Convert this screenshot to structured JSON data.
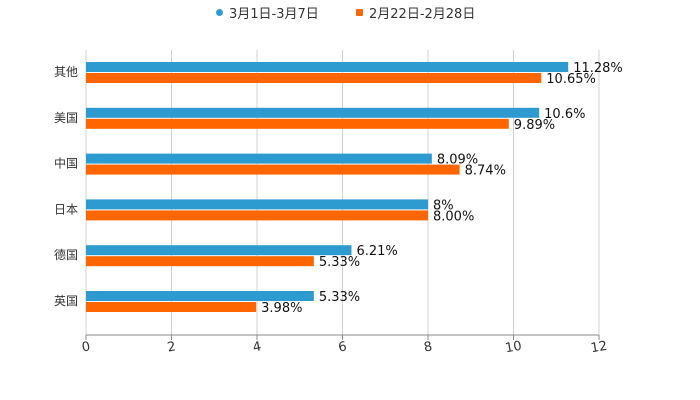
{
  "colors": {
    "series_a": "#2e9bd0",
    "series_b": "#ff6600",
    "grid": "#d0d0d0",
    "axis": "#888888",
    "text": "#333333"
  },
  "legend": [
    {
      "label": "3月1日-3月7日"
    },
    {
      "label": "2月22日-2月28日"
    }
  ],
  "chart_data": {
    "type": "bar",
    "orientation": "horizontal",
    "title": "",
    "xlabel": "",
    "ylabel": "",
    "xlim": [
      0,
      12
    ],
    "x_ticks": [
      "0",
      "2",
      "4",
      "6",
      "8",
      "10",
      "12"
    ],
    "grid": true,
    "legend_position": "top-center",
    "categories": [
      "其他",
      "美国",
      "中国",
      "日本",
      "德国",
      "英国"
    ],
    "series": [
      {
        "name": "3月1日-3月7日",
        "values": [
          11.28,
          10.6,
          8.09,
          8,
          6.21,
          5.33
        ],
        "labels": [
          "11.28%",
          "10.6%",
          "8.09%",
          "8%",
          "6.21%",
          "5.33%"
        ]
      },
      {
        "name": "2月22日-2月28日",
        "values": [
          10.65,
          9.89,
          8.74,
          8.0,
          5.33,
          3.98
        ],
        "labels": [
          "10.65%",
          "9.89%",
          "8.74%",
          "8.00%",
          "5.33%",
          "3.98%"
        ]
      }
    ]
  }
}
